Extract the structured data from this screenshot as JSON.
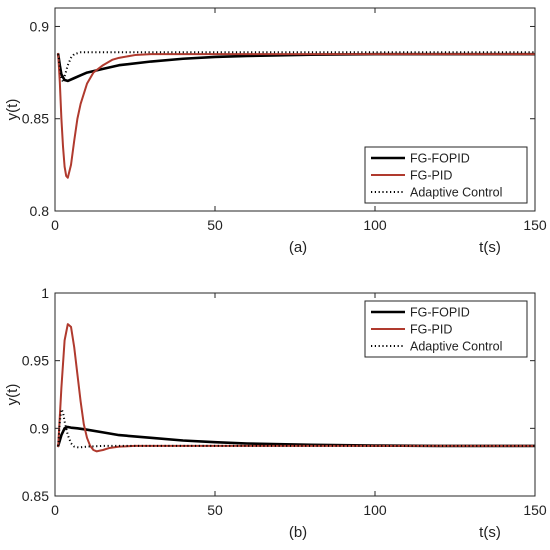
{
  "colors": {
    "fg_fopid": "#000000",
    "fg_pid": "#b03a2e",
    "adaptive": "#000000",
    "axis": "#262626",
    "background": "#ffffff"
  },
  "chart_data": [
    {
      "type": "line",
      "caption": "(a)",
      "xlabel": "t(s)",
      "ylabel": "y(t)",
      "xlim": [
        0,
        150
      ],
      "ylim": [
        0.8,
        0.91
      ],
      "xticks": [
        0,
        50,
        100,
        150
      ],
      "yticks": [
        0.8,
        0.85,
        0.9
      ],
      "xtick_labels": [
        "0",
        "50",
        "100",
        "150"
      ],
      "ytick_labels": [
        "0.8",
        "0.85",
        "0.9"
      ],
      "grid": false,
      "legend": "bottom-right",
      "series": [
        {
          "name": "FG-FOPID",
          "color": "#000000",
          "style": "solid",
          "x": [
            1,
            1.5,
            2,
            3,
            4,
            6,
            8,
            10,
            15,
            20,
            30,
            40,
            50,
            60,
            80,
            100,
            120,
            150
          ],
          "y": [
            0.885,
            0.879,
            0.874,
            0.871,
            0.8705,
            0.872,
            0.8735,
            0.875,
            0.877,
            0.879,
            0.881,
            0.8825,
            0.8835,
            0.884,
            0.8847,
            0.885,
            0.885,
            0.885
          ]
        },
        {
          "name": "FG-PID",
          "color": "#b03a2e",
          "style": "solid",
          "x": [
            1,
            1.5,
            2,
            2.5,
            3,
            3.5,
            4,
            5,
            6,
            7,
            8,
            10,
            12,
            15,
            18,
            20,
            25,
            30,
            40,
            60,
            100,
            150
          ],
          "y": [
            0.885,
            0.87,
            0.85,
            0.835,
            0.824,
            0.819,
            0.818,
            0.825,
            0.838,
            0.85,
            0.858,
            0.869,
            0.875,
            0.879,
            0.882,
            0.883,
            0.8845,
            0.885,
            0.885,
            0.885,
            0.885,
            0.885
          ]
        },
        {
          "name": "Adaptive Control",
          "color": "#000000",
          "style": "dotted",
          "x": [
            1,
            1.5,
            2,
            2.5,
            3,
            4,
            5,
            6,
            8,
            10,
            150
          ],
          "y": [
            0.885,
            0.878,
            0.872,
            0.87,
            0.873,
            0.879,
            0.883,
            0.885,
            0.886,
            0.886,
            0.886
          ]
        }
      ]
    },
    {
      "type": "line",
      "caption": "(b)",
      "xlabel": "t(s)",
      "ylabel": "y(t)",
      "xlim": [
        0,
        150
      ],
      "ylim": [
        0.85,
        1.0
      ],
      "xticks": [
        0,
        50,
        100,
        150
      ],
      "yticks": [
        0.85,
        0.9,
        0.95,
        1
      ],
      "xtick_labels": [
        "0",
        "50",
        "100",
        "150"
      ],
      "ytick_labels": [
        "0.85",
        "0.9",
        "0.95",
        "1"
      ],
      "grid": false,
      "legend": "top-right",
      "series": [
        {
          "name": "FG-FOPID",
          "color": "#000000",
          "style": "solid",
          "x": [
            1,
            2,
            3,
            4,
            5,
            7,
            10,
            15,
            20,
            30,
            40,
            50,
            60,
            80,
            100,
            120,
            150
          ],
          "y": [
            0.887,
            0.895,
            0.9,
            0.901,
            0.9005,
            0.9,
            0.899,
            0.897,
            0.895,
            0.893,
            0.891,
            0.8898,
            0.8888,
            0.8878,
            0.8873,
            0.887,
            0.887
          ]
        },
        {
          "name": "FG-PID",
          "color": "#b03a2e",
          "style": "solid",
          "x": [
            1,
            2,
            3,
            4,
            5,
            6,
            7,
            8,
            9,
            10,
            11,
            12,
            13,
            14,
            15,
            17,
            20,
            25,
            30,
            50,
            100,
            150
          ],
          "y": [
            0.887,
            0.93,
            0.965,
            0.977,
            0.975,
            0.96,
            0.94,
            0.92,
            0.903,
            0.893,
            0.887,
            0.884,
            0.883,
            0.8835,
            0.884,
            0.8855,
            0.8865,
            0.887,
            0.887,
            0.887,
            0.887,
            0.887
          ]
        },
        {
          "name": "Adaptive Control",
          "color": "#000000",
          "style": "dotted",
          "x": [
            1,
            1.5,
            2,
            2.5,
            3,
            4,
            5,
            6,
            7,
            8,
            10,
            15,
            150
          ],
          "y": [
            0.887,
            0.905,
            0.914,
            0.912,
            0.905,
            0.895,
            0.889,
            0.8865,
            0.886,
            0.886,
            0.8865,
            0.887,
            0.887
          ]
        }
      ]
    }
  ]
}
